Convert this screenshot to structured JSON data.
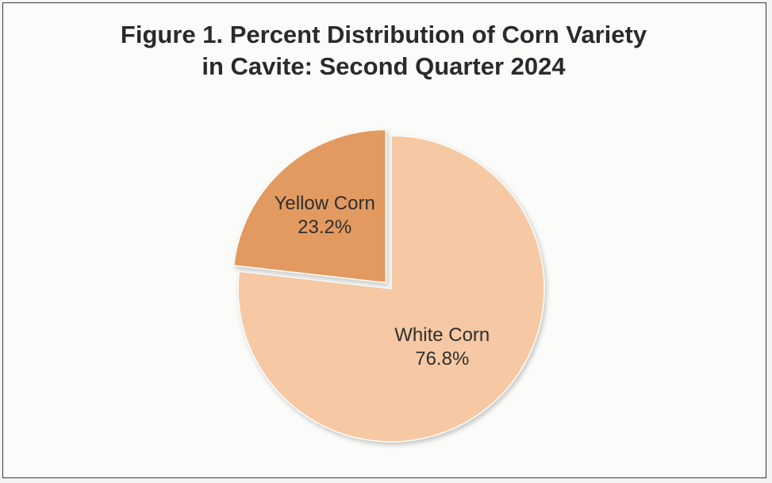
{
  "chart_data": {
    "type": "pie",
    "title_lines": [
      "Figure 1. Percent Distribution of Corn Variety",
      "in Cavite: Second Quarter 2024"
    ],
    "slices": [
      {
        "label": "White Corn",
        "value": 76.8,
        "value_label": "76.8%",
        "color": "#f6c9a4",
        "exploded": false
      },
      {
        "label": "Yellow Corn",
        "value": 23.2,
        "value_label": "23.2%",
        "color": "#e39a60",
        "exploded": true
      }
    ],
    "legend": "none",
    "start_angle_deg": 0,
    "direction": "clockwise"
  }
}
